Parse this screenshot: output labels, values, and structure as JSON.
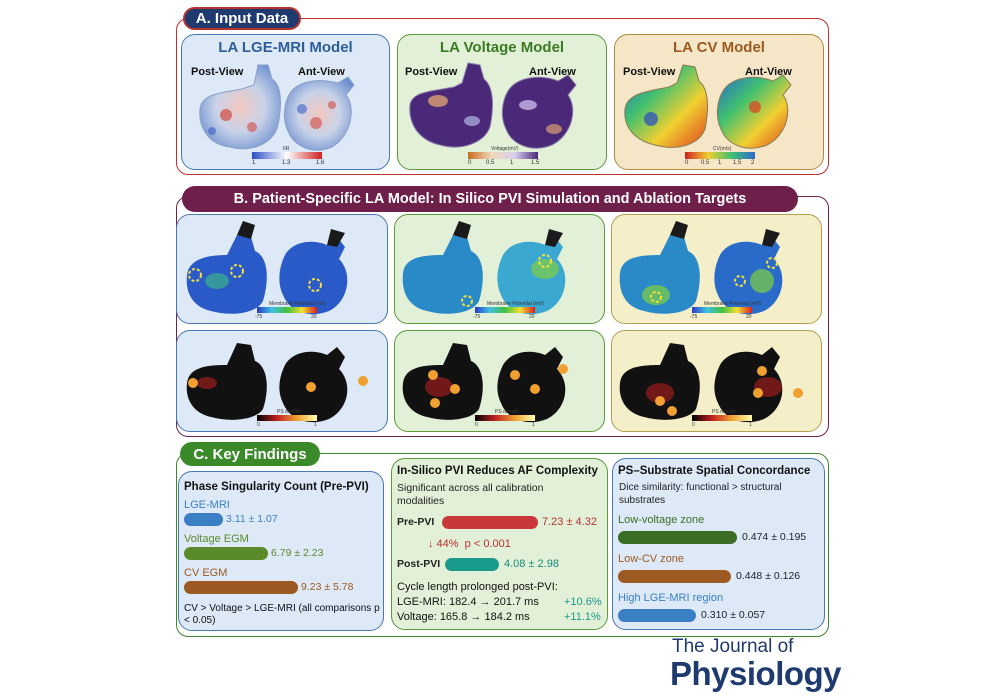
{
  "sectionA": {
    "title": "A. Input Data",
    "panels": [
      {
        "title": "LA LGE-MRI Model",
        "post": "Post-View",
        "ant": "Ant-View",
        "colorbar_label": "IIR",
        "ticks": [
          "1",
          "1.3",
          "1.6"
        ]
      },
      {
        "title": "LA Voltage Model",
        "post": "Post-View",
        "ant": "Ant-View",
        "colorbar_label": "Voltage(mV)",
        "ticks": [
          "0",
          "0.5",
          "1",
          "1.5"
        ]
      },
      {
        "title": "LA CV Model",
        "post": "Post-View",
        "ant": "Ant-View",
        "colorbar_label": "CV(m/s)",
        "ticks": [
          "0",
          "0.5",
          "1",
          "1.5",
          "2"
        ]
      }
    ]
  },
  "sectionB": {
    "title": "B. Patient-Specific LA Model: In Silico PVI Simulation and Ablation Targets",
    "membrane": {
      "label": "Membrane Potential (mV)",
      "min": "-75",
      "max": "20"
    },
    "ps": {
      "label": "PS density",
      "min": "0",
      "max": "1"
    }
  },
  "sectionC": {
    "title": "C. Key Findings",
    "phase": {
      "heading": "Phase Singularity Count (Pre-PVI)",
      "items": [
        {
          "label": "LGE-MRI",
          "value": "3.11 ± 1.07",
          "color": "#3a7fc4",
          "level": 0.34
        },
        {
          "label": "Voltage EGM",
          "value": "6.79 ± 2.23",
          "color": "#5a8a2a",
          "level": 0.74
        },
        {
          "label": "CV EGM",
          "value": "9.23 ± 5.78",
          "color": "#9c5a22",
          "level": 1.0
        }
      ],
      "note": "CV > Voltage > LGE-MRI (all comparisons p < 0.05)"
    },
    "pvi": {
      "heading": "In-Silico PVI Reduces AF Complexity",
      "sub": "Significant across all calibration modalities",
      "pre_label": "Pre-PVI",
      "pre_value": "7.23 ± 4.32",
      "reduction": "↓ 44%  p < 0.001",
      "post_label": "Post-PVI",
      "post_value": "4.08 ± 2.98",
      "cycle_heading": "Cycle length prolonged post-PVI:",
      "lge_line": "LGE-MRI: 182.4 → 201.7 ms",
      "lge_change": "+10.6%",
      "volt_line": "Voltage: 165.8 → 184.2 ms",
      "volt_change": "+11.1%"
    },
    "concord": {
      "heading": "PS–Substrate Spatial Concordance",
      "sub": "Dice similarity: functional > structural substrates",
      "items": [
        {
          "label": "Low-voltage zone",
          "value": "0.474 ± 0.195",
          "color": "#3b6e25",
          "level": 0.474
        },
        {
          "label": "Low-CV zone",
          "value": "0.448 ± 0.126",
          "color": "#9c5a22",
          "level": 0.448
        },
        {
          "label": "High LGE-MRI region",
          "value": "0.310 ± 0.057",
          "color": "#3a7fc4",
          "level": 0.31
        }
      ]
    }
  },
  "journal": {
    "line1": "The Journal of",
    "line2": "Physiology"
  },
  "colors": {
    "maroon": "#6e1f4a",
    "navy": "#1f3a6e",
    "green": "#3a8a2a",
    "red": "#b8322e",
    "teal": "#1a9a8a"
  }
}
